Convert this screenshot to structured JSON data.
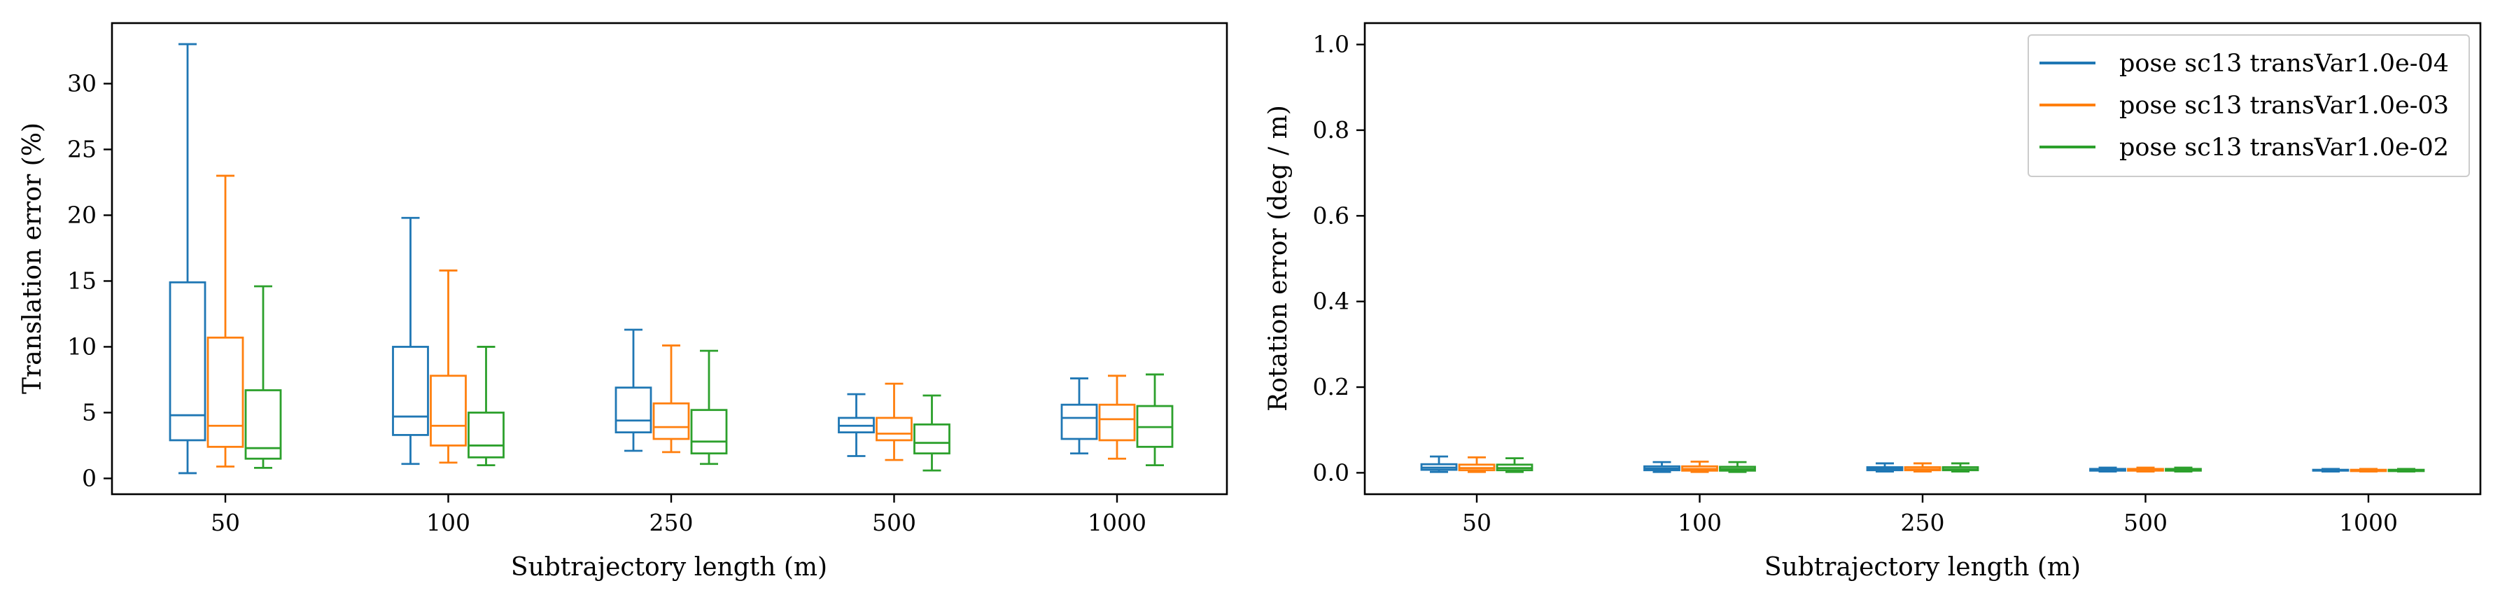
{
  "chart_data": [
    {
      "type": "box",
      "title": "",
      "xlabel": "Subtrajectory length (m)",
      "ylabel": "Translation error (%)",
      "categories": [
        "50",
        "100",
        "250",
        "500",
        "1000"
      ],
      "ylim": [
        -1.2,
        34.6
      ],
      "yticks": [
        0,
        5,
        10,
        15,
        20,
        25,
        30
      ],
      "grid": false,
      "series": [
        {
          "name": "pose sc13 transVar1.0e-04",
          "color": "#1f77b4",
          "boxes": [
            {
              "whislo": 0.4,
              "q1": 2.9,
              "med": 4.8,
              "q3": 14.9,
              "whishi": 33.0
            },
            {
              "whislo": 1.1,
              "q1": 3.3,
              "med": 4.7,
              "q3": 10.0,
              "whishi": 19.8
            },
            {
              "whislo": 2.1,
              "q1": 3.5,
              "med": 4.4,
              "q3": 6.9,
              "whishi": 11.3
            },
            {
              "whislo": 1.7,
              "q1": 3.5,
              "med": 4.0,
              "q3": 4.6,
              "whishi": 6.4
            },
            {
              "whislo": 1.9,
              "q1": 3.0,
              "med": 4.6,
              "q3": 5.6,
              "whishi": 7.6
            }
          ]
        },
        {
          "name": "pose sc13 transVar1.0e-03",
          "color": "#ff7f0e",
          "boxes": [
            {
              "whislo": 0.9,
              "q1": 2.4,
              "med": 4.0,
              "q3": 10.7,
              "whishi": 23.0
            },
            {
              "whislo": 1.2,
              "q1": 2.5,
              "med": 4.0,
              "q3": 7.8,
              "whishi": 15.8
            },
            {
              "whislo": 2.0,
              "q1": 3.0,
              "med": 3.9,
              "q3": 5.7,
              "whishi": 10.1
            },
            {
              "whislo": 1.4,
              "q1": 2.9,
              "med": 3.4,
              "q3": 4.6,
              "whishi": 7.2
            },
            {
              "whislo": 1.5,
              "q1": 2.9,
              "med": 4.5,
              "q3": 5.6,
              "whishi": 7.8
            }
          ]
        },
        {
          "name": "pose sc13 transVar1.0e-02",
          "color": "#2ca02c",
          "boxes": [
            {
              "whislo": 0.8,
              "q1": 1.5,
              "med": 2.3,
              "q3": 6.7,
              "whishi": 14.6
            },
            {
              "whislo": 1.0,
              "q1": 1.6,
              "med": 2.5,
              "q3": 5.0,
              "whishi": 10.0
            },
            {
              "whislo": 1.1,
              "q1": 1.9,
              "med": 2.8,
              "q3": 5.2,
              "whishi": 9.7
            },
            {
              "whislo": 0.6,
              "q1": 1.9,
              "med": 2.7,
              "q3": 4.1,
              "whishi": 6.3
            },
            {
              "whislo": 1.0,
              "q1": 2.4,
              "med": 3.9,
              "q3": 5.5,
              "whishi": 7.9
            }
          ]
        }
      ]
    },
    {
      "type": "box",
      "title": "",
      "xlabel": "Subtrajectory length (m)",
      "ylabel": "Rotation error (deg / m)",
      "categories": [
        "50",
        "100",
        "250",
        "500",
        "1000"
      ],
      "ylim": [
        -0.05,
        1.05
      ],
      "yticks": [
        0.0,
        0.2,
        0.4,
        0.6,
        0.8,
        1.0
      ],
      "ytick_labels": [
        "0.0",
        "0.2",
        "0.4",
        "0.6",
        "0.8",
        "1.0"
      ],
      "grid": false,
      "legend": {
        "placement": "top-right",
        "entries": [
          {
            "label": "pose sc13 transVar1.0e-04",
            "color": "#1f77b4"
          },
          {
            "label": "pose sc13 transVar1.0e-03",
            "color": "#ff7f0e"
          },
          {
            "label": "pose sc13 transVar1.0e-02",
            "color": "#2ca02c"
          }
        ]
      },
      "series": [
        {
          "name": "pose sc13 transVar1.0e-04",
          "color": "#1f77b4",
          "boxes": [
            {
              "whislo": 0.002,
              "q1": 0.007,
              "med": 0.012,
              "q3": 0.02,
              "whishi": 0.038
            },
            {
              "whislo": 0.002,
              "q1": 0.006,
              "med": 0.01,
              "q3": 0.015,
              "whishi": 0.025
            },
            {
              "whislo": 0.003,
              "q1": 0.006,
              "med": 0.009,
              "q3": 0.013,
              "whishi": 0.022
            },
            {
              "whislo": 0.003,
              "q1": 0.005,
              "med": 0.007,
              "q3": 0.009,
              "whishi": 0.012
            },
            {
              "whislo": 0.003,
              "q1": 0.005,
              "med": 0.006,
              "q3": 0.007,
              "whishi": 0.009
            }
          ]
        },
        {
          "name": "pose sc13 transVar1.0e-03",
          "color": "#ff7f0e",
          "boxes": [
            {
              "whislo": 0.002,
              "q1": 0.006,
              "med": 0.011,
              "q3": 0.019,
              "whishi": 0.036
            },
            {
              "whislo": 0.002,
              "q1": 0.005,
              "med": 0.009,
              "q3": 0.015,
              "whishi": 0.026
            },
            {
              "whislo": 0.003,
              "q1": 0.006,
              "med": 0.008,
              "q3": 0.013,
              "whishi": 0.022
            },
            {
              "whislo": 0.003,
              "q1": 0.005,
              "med": 0.007,
              "q3": 0.009,
              "whishi": 0.012
            },
            {
              "whislo": 0.003,
              "q1": 0.004,
              "med": 0.006,
              "q3": 0.007,
              "whishi": 0.009
            }
          ]
        },
        {
          "name": "pose sc13 transVar1.0e-02",
          "color": "#2ca02c",
          "boxes": [
            {
              "whislo": 0.002,
              "q1": 0.006,
              "med": 0.011,
              "q3": 0.019,
              "whishi": 0.034
            },
            {
              "whislo": 0.002,
              "q1": 0.005,
              "med": 0.009,
              "q3": 0.014,
              "whishi": 0.025
            },
            {
              "whislo": 0.003,
              "q1": 0.006,
              "med": 0.008,
              "q3": 0.013,
              "whishi": 0.022
            },
            {
              "whislo": 0.003,
              "q1": 0.005,
              "med": 0.007,
              "q3": 0.009,
              "whishi": 0.012
            },
            {
              "whislo": 0.003,
              "q1": 0.004,
              "med": 0.006,
              "q3": 0.007,
              "whishi": 0.009
            }
          ]
        }
      ]
    }
  ]
}
